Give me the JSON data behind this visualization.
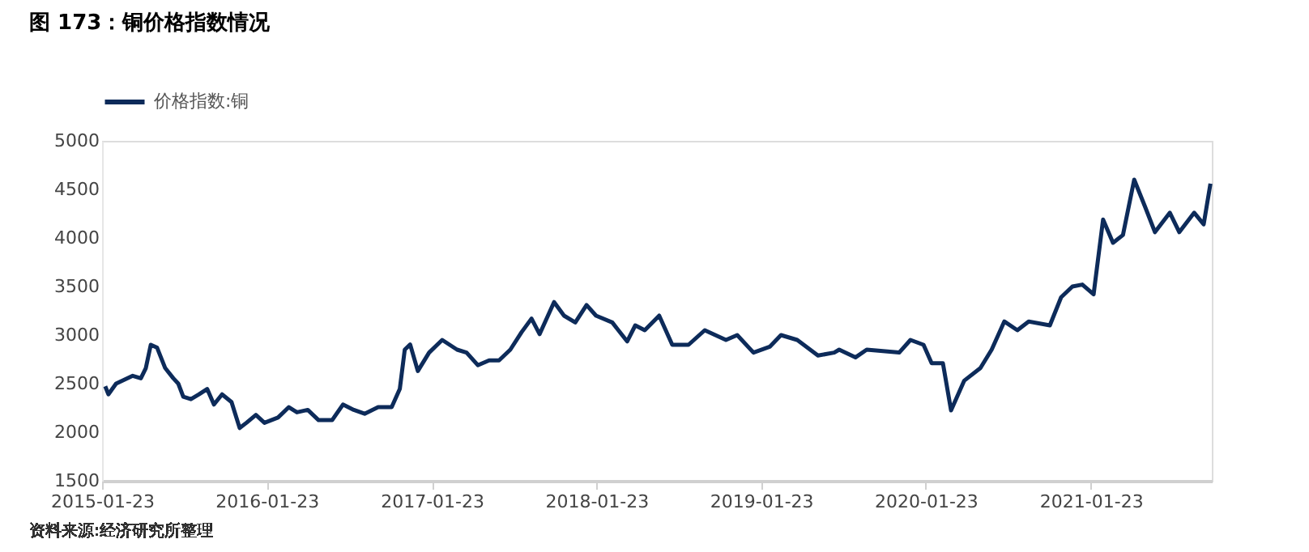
{
  "chart_data": {
    "type": "line",
    "title": "图 173：铜价格指数情况",
    "annotations": [
      "资料来源:经济研究所整理"
    ],
    "x": [
      "2015-01-30",
      "2015-02-06",
      "2015-02-23",
      "2015-03-13",
      "2015-04-01",
      "2015-04-19",
      "2015-04-30",
      "2015-05-11",
      "2015-05-25",
      "2015-06-12",
      "2015-06-30",
      "2015-07-11",
      "2015-07-22",
      "2015-08-08",
      "2015-08-26",
      "2015-09-13",
      "2015-09-28",
      "2015-10-16",
      "2015-11-06",
      "2015-11-24",
      "2015-12-09",
      "2015-12-30",
      "2016-01-18",
      "2016-02-17",
      "2016-03-12",
      "2016-03-30",
      "2016-04-23",
      "2016-05-17",
      "2016-06-16",
      "2016-07-10",
      "2016-08-03",
      "2016-08-27",
      "2016-09-26",
      "2016-10-26",
      "2016-11-13",
      "2016-11-24",
      "2016-12-06",
      "2016-12-23",
      "2017-01-17",
      "2017-02-15",
      "2017-03-20",
      "2017-04-10",
      "2017-05-05",
      "2017-05-30",
      "2017-06-21",
      "2017-07-16",
      "2017-08-10",
      "2017-09-01",
      "2017-09-19",
      "2017-10-21",
      "2017-11-12",
      "2017-12-07",
      "2018-01-01",
      "2018-01-22",
      "2018-02-27",
      "2018-04-01",
      "2018-04-19",
      "2018-05-10",
      "2018-06-11",
      "2018-07-10",
      "2018-08-15",
      "2018-09-20",
      "2018-11-06",
      "2018-12-01",
      "2019-01-06",
      "2019-02-11",
      "2019-03-08",
      "2019-04-13",
      "2019-05-29",
      "2019-07-04",
      "2019-07-15",
      "2019-08-20",
      "2019-09-14",
      "2019-11-25",
      "2019-12-20",
      "2020-01-18",
      "2020-02-05",
      "2020-03-01",
      "2020-03-19",
      "2020-04-17",
      "2020-05-23",
      "2020-06-17",
      "2020-07-15",
      "2020-08-13",
      "2020-09-07",
      "2020-10-24",
      "2020-11-18",
      "2020-12-13",
      "2021-01-04",
      "2021-01-29",
      "2021-02-19",
      "2021-03-13",
      "2021-04-04",
      "2021-04-29",
      "2021-05-24",
      "2021-06-14",
      "2021-07-17",
      "2021-08-07",
      "2021-09-09",
      "2021-09-30",
      "2021-10-15"
    ],
    "series": [
      {
        "name": "价格指数:铜",
        "color": "#0d2b5a",
        "values": [
          2473,
          2390,
          2500,
          2540,
          2581,
          2555,
          2660,
          2900,
          2870,
          2660,
          2555,
          2500,
          2366,
          2340,
          2390,
          2445,
          2285,
          2390,
          2310,
          2043,
          2097,
          2178,
          2097,
          2151,
          2258,
          2205,
          2230,
          2124,
          2124,
          2285,
          2230,
          2190,
          2258,
          2258,
          2445,
          2850,
          2903,
          2630,
          2820,
          2950,
          2850,
          2820,
          2690,
          2740,
          2740,
          2850,
          3030,
          3170,
          3010,
          3340,
          3200,
          3130,
          3310,
          3200,
          3130,
          2935,
          3100,
          3050,
          3200,
          2900,
          2900,
          3050,
          2950,
          3000,
          2820,
          2880,
          3000,
          2950,
          2790,
          2820,
          2850,
          2770,
          2850,
          2820,
          2950,
          2900,
          2710,
          2710,
          2225,
          2530,
          2660,
          2850,
          3140,
          3050,
          3140,
          3100,
          3390,
          3500,
          3520,
          3420,
          4190,
          3950,
          4030,
          4600,
          4310,
          4060,
          4260,
          4060,
          4260,
          4140,
          4560
        ]
      }
    ],
    "xlim": [
      "2015-01-23",
      "2021-10-18"
    ],
    "xticks": [
      "2015-01-23",
      "2016-01-23",
      "2017-01-23",
      "2018-01-23",
      "2019-01-23",
      "2020-01-23",
      "2021-01-23"
    ],
    "ylim": [
      1500,
      5000
    ],
    "yticks": [
      1500,
      2000,
      2500,
      3000,
      3500,
      4000,
      4500,
      5000
    ],
    "grid": false,
    "legend": "top",
    "line_style": "solid",
    "marker": "none"
  }
}
